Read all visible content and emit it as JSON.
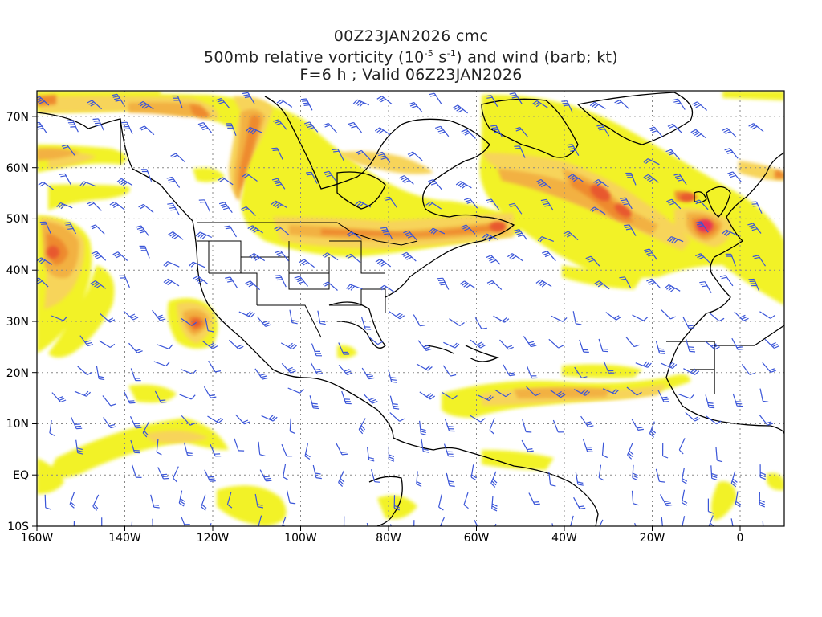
{
  "title": {
    "line1": "00Z23JAN2026 cmc",
    "line2_pre": "500mb relative vorticity (10",
    "line2_sup1": "-5",
    "line2_mid": " s",
    "line2_sup2": "-1",
    "line2_post": ") and wind (barb; kt)",
    "line3": "F=6 h ; Valid 06Z23JAN2026"
  },
  "map": {
    "lon_range": [
      -160,
      10
    ],
    "lat_range": [
      -10,
      75
    ],
    "lon_ticks": [
      "160W",
      "140W",
      "120W",
      "100W",
      "80W",
      "60W",
      "40W",
      "20W",
      "0"
    ],
    "lat_ticks": [
      "10S",
      "EQ",
      "10N",
      "20N",
      "30N",
      "40N",
      "50N",
      "60N",
      "70N"
    ],
    "colors": {
      "shade_1": "#f2f21a",
      "shade_2": "#f7d45a",
      "shade_3": "#f2b143",
      "shade_4": "#ee8a2f",
      "shade_5": "#e8582e",
      "shade_6": "#e8305a",
      "barb": "#3a55d8",
      "coast": "#000000",
      "grid": "#888888"
    }
  }
}
